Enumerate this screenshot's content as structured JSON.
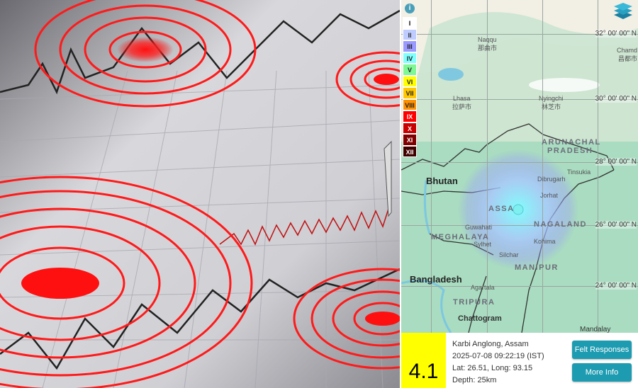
{
  "map": {
    "info_icon": "info-icon",
    "layers_icon": "layers-icon",
    "intensity_legend": [
      {
        "label": "I",
        "color": "#ffffff",
        "text": "#000"
      },
      {
        "label": "II",
        "color": "#bfccff",
        "text": "#333"
      },
      {
        "label": "III",
        "color": "#9999ff",
        "text": "#222"
      },
      {
        "label": "IV",
        "color": "#80ffff",
        "text": "#222"
      },
      {
        "label": "V",
        "color": "#7df894",
        "text": "#222"
      },
      {
        "label": "VI",
        "color": "#ffff00",
        "text": "#222"
      },
      {
        "label": "VII",
        "color": "#ffc800",
        "text": "#222"
      },
      {
        "label": "VIII",
        "color": "#ff9100",
        "text": "#222"
      },
      {
        "label": "IX",
        "color": "#ff0000",
        "text": "#fff"
      },
      {
        "label": "X",
        "color": "#c80000",
        "text": "#fff"
      },
      {
        "label": "XI",
        "color": "#800000",
        "text": "#fff"
      },
      {
        "label": "XII",
        "color": "#400000",
        "text": "#fff"
      }
    ],
    "lat_labels": [
      "32° 00' 00\" N",
      "30° 00' 00\" N",
      "28° 00' 00\" N",
      "26° 00' 00\" N",
      "24° 00' 00\" N"
    ],
    "places": {
      "naqqu": "Naqqu",
      "naqqu_cn": "那曲市",
      "lhasa": "Lhasa",
      "lhasa_cn": "拉萨市",
      "nyingchi": "Nyingchi",
      "nyingchi_cn": "林芝市",
      "chamdo": "Chamd",
      "chamdo_cn": "昌都市",
      "arunachal1": "ARUNACHAL",
      "arunachal2": "PRADESH",
      "bhutan": "Bhutan",
      "tinsukia": "Tinsukia",
      "dibrugarh": "Dibrugarh",
      "jorhat": "Jorhat",
      "assam": "ASSA",
      "guwahati": "Guwahati",
      "nagaland": "NAGALAND",
      "meghalaya": "MEGHALAYA",
      "kohima": "Kohima",
      "sylhet": "Sylhet",
      "silchar": "Silchar",
      "manipur": "MANIPUR",
      "bangladesh": "Bangladesh",
      "agartala": "Agartala",
      "tripura": "TRIPURA",
      "chattogram": "Chattogram",
      "mandalay": "Mandalay"
    },
    "epicenter_color": "#7ff0f0"
  },
  "event": {
    "magnitude": "4.1",
    "location": "Karbi Anglong, Assam",
    "datetime": "2025-07-08 09:22:19 (IST)",
    "coords": "Lat: 26.51, Long: 93.15",
    "depth": "Depth: 25km",
    "felt_button": "Felt Responses",
    "more_button": "More Info"
  }
}
